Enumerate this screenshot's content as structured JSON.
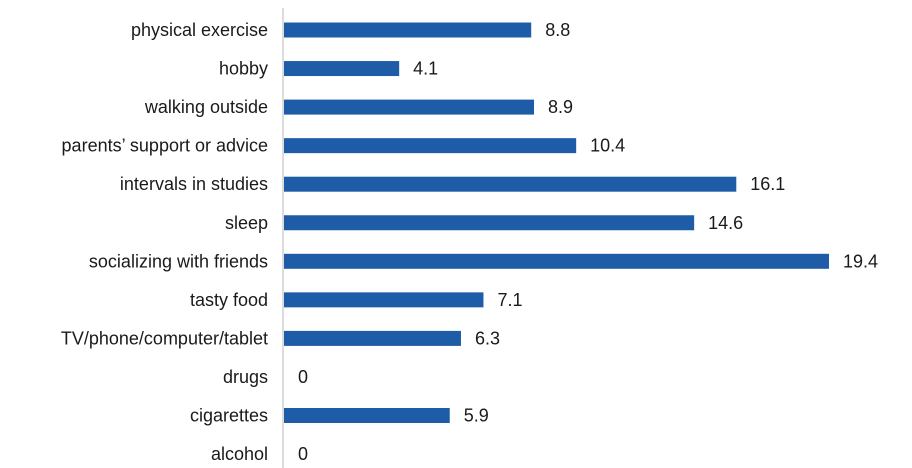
{
  "chart_data": {
    "type": "bar",
    "orientation": "horizontal",
    "categories": [
      "physical exercise",
      "hobby",
      "walking outside",
      "parents’ support or advice",
      "intervals in studies",
      "sleep",
      "socializing with friends",
      "tasty food",
      "TV/phone/computer/tablet",
      "drugs",
      "cigarettes",
      "alcohol"
    ],
    "values": [
      8.8,
      4.1,
      8.9,
      10.4,
      16.1,
      14.6,
      19.4,
      7.1,
      6.3,
      0,
      5.9,
      0
    ],
    "value_labels": [
      "8.8",
      "4.1",
      "8.9",
      "10.4",
      "16.1",
      "14.6",
      "19.4",
      "7.1",
      "6.3",
      "0",
      "5.9",
      "0"
    ],
    "title": "",
    "xlabel": "",
    "ylabel": "",
    "xlim": [
      0,
      19.4
    ],
    "grid": false,
    "legend": "none",
    "bar_color": "#1f5ca8",
    "axis_color": "#d0d0d0"
  }
}
